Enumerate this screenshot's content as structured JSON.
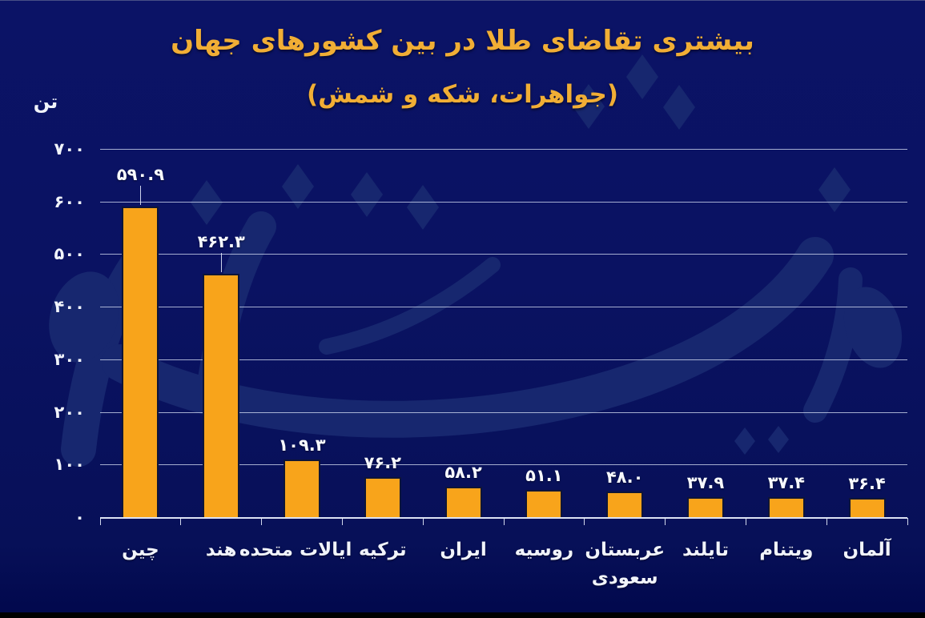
{
  "colors": {
    "background": "#0A1262",
    "bar": "#F8A41B",
    "title": "#F1AE35",
    "text": "#F1F4FB",
    "watermark": "#17276F",
    "bottom_strip": "#000000"
  },
  "watermark": {
    "text": "دنیای اقتصاد"
  },
  "chart_data": {
    "type": "bar",
    "title": "بیشتری تقاضای طلا در بین کشورهای جهان",
    "subtitle": "(جواهرات، شکه و شمش)",
    "unit_label": "تن",
    "direction": "rtl",
    "grid": true,
    "legend": false,
    "categories": [
      "چین",
      "هند",
      "ایالات متحده",
      "ترکیه",
      "ایران",
      "روسیه",
      "عربستان\nسعودی",
      "تایلند",
      "ویتنام",
      "آلمان"
    ],
    "values": [
      590.9,
      462.3,
      109.3,
      76.2,
      58.2,
      51.1,
      48.0,
      37.9,
      37.4,
      36.4
    ],
    "value_labels": [
      "۵۹۰.۹",
      "۴۶۲.۳",
      "۱۰۹.۳",
      "۷۶.۲",
      "۵۸.۲",
      "۵۱.۱",
      "۴۸.۰",
      "۳۷.۹",
      "۳۷.۴",
      "۳۶.۴"
    ],
    "y_axis": {
      "max": 700,
      "min": 0,
      "ticks": [
        700,
        600,
        500,
        400,
        300,
        200,
        100,
        0
      ],
      "tick_labels": [
        "۷۰۰",
        "۶۰۰",
        "۵۰۰",
        "۴۰۰",
        "۳۰۰",
        "۲۰۰",
        "۱۰۰",
        "۰"
      ]
    }
  }
}
